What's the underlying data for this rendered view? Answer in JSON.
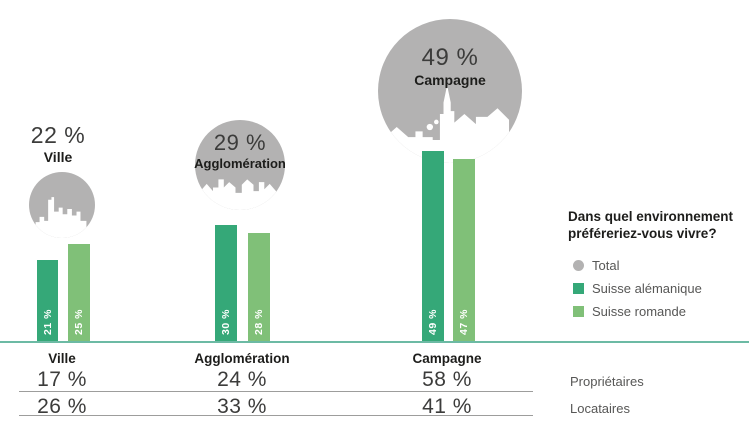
{
  "title": "Dans quel environnement préféreriez-vous vivre?",
  "legend": {
    "title_line1": "Dans quel environnement",
    "title_line2": "préféreriez-vous vivre?",
    "items": [
      {
        "label": "Total",
        "color": "#b3b2b2",
        "shape": "circle"
      },
      {
        "label": "Suisse alémanique",
        "color": "#35a878",
        "shape": "square"
      },
      {
        "label": "Suisse romande",
        "color": "#80c078",
        "shape": "square"
      }
    ]
  },
  "groups": [
    {
      "name": "Ville",
      "total_label": "22 %",
      "alemanique_label": "21 %",
      "romande_label": "25 %",
      "icon": "city-skyline"
    },
    {
      "name": "Agglomération",
      "total_label": "29 %",
      "alemanique_label": "30 %",
      "romande_label": "28 %",
      "icon": "town-skyline"
    },
    {
      "name": "Campagne",
      "total_label": "49 %",
      "alemanique_label": "49 %",
      "romande_label": "47 %",
      "icon": "village-church"
    }
  ],
  "chart_data": {
    "type": "bar",
    "title": "Dans quel environnement préféreriez-vous vivre?",
    "categories": [
      "Ville",
      "Agglomération",
      "Campagne"
    ],
    "series": [
      {
        "name": "Total",
        "values": [
          22,
          29,
          49
        ],
        "display": "bubble",
        "color": "#b3b2b2"
      },
      {
        "name": "Suisse alémanique",
        "values": [
          21,
          30,
          49
        ],
        "color": "#35a878"
      },
      {
        "name": "Suisse romande",
        "values": [
          25,
          28,
          47
        ],
        "color": "#80c078"
      }
    ],
    "ylim": [
      0,
      50
    ],
    "grid": false,
    "legend_position": "right",
    "baseline_color": "#6cbaa4",
    "table": {
      "headers": [
        "Ville",
        "Agglomération",
        "Campagne"
      ],
      "rows": [
        {
          "label": "Propriétaires",
          "values": [
            17,
            24,
            58
          ]
        },
        {
          "label": "Locataires",
          "values": [
            26,
            33,
            41
          ]
        }
      ]
    }
  },
  "table": {
    "headers": [
      "Ville",
      "Agglomération",
      "Campagne"
    ],
    "rows": [
      {
        "label": "Propriétaires",
        "cells": [
          "17 %",
          "24 %",
          "58 %"
        ]
      },
      {
        "label": "Locataires",
        "cells": [
          "26 %",
          "33 %",
          "41 %"
        ]
      }
    ]
  }
}
